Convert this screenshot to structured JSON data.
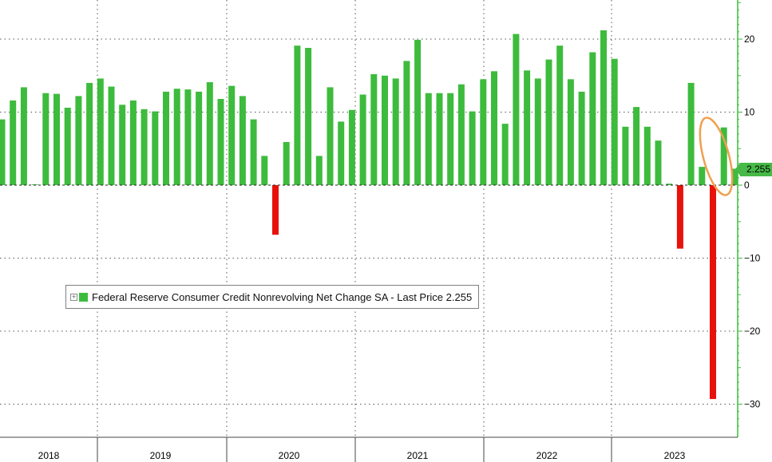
{
  "chart_data": {
    "type": "bar",
    "title": "",
    "xlabel": "",
    "ylabel": "",
    "ylim": [
      -34,
      25
    ],
    "yticks": [
      20,
      10,
      0,
      -10,
      -20,
      -30
    ],
    "year_labels": [
      "2018",
      "2019",
      "2020",
      "2021",
      "2022",
      "2023"
    ],
    "colors": {
      "positive": "#3dbb3d",
      "negative": "#e8120c",
      "axis": "#3dbb3d",
      "highlight": "#f0a050"
    },
    "series": [
      {
        "name": "Federal Reserve Consumer Credit Nonrevolving Net Change SA",
        "values": [
          9.0,
          11.6,
          13.4,
          0.1,
          12.6,
          12.5,
          10.6,
          12.2,
          14.0,
          14.6,
          13.5,
          11.0,
          11.6,
          10.4,
          10.1,
          12.8,
          13.2,
          13.1,
          12.8,
          14.1,
          11.8,
          13.6,
          12.2,
          9.0,
          4.0,
          -6.8,
          5.9,
          19.1,
          18.8,
          4.0,
          13.4,
          8.7,
          10.3,
          12.4,
          15.2,
          15.0,
          14.6,
          17.0,
          19.9,
          12.6,
          12.6,
          12.6,
          13.8,
          10.1,
          14.5,
          15.6,
          8.4,
          20.7,
          15.7,
          14.6,
          17.2,
          19.1,
          14.5,
          12.8,
          18.2,
          21.2,
          17.3,
          8.0,
          10.7,
          8.0,
          6.1,
          0.2,
          -8.7,
          14.0,
          2.5,
          -29.3,
          7.9,
          2.255
        ]
      }
    ],
    "last_price": "2.255",
    "legend": "Federal Reserve Consumer Credit Nonrevolving Net Change SA - Last Price 2.255",
    "legend_position": "center-left"
  }
}
